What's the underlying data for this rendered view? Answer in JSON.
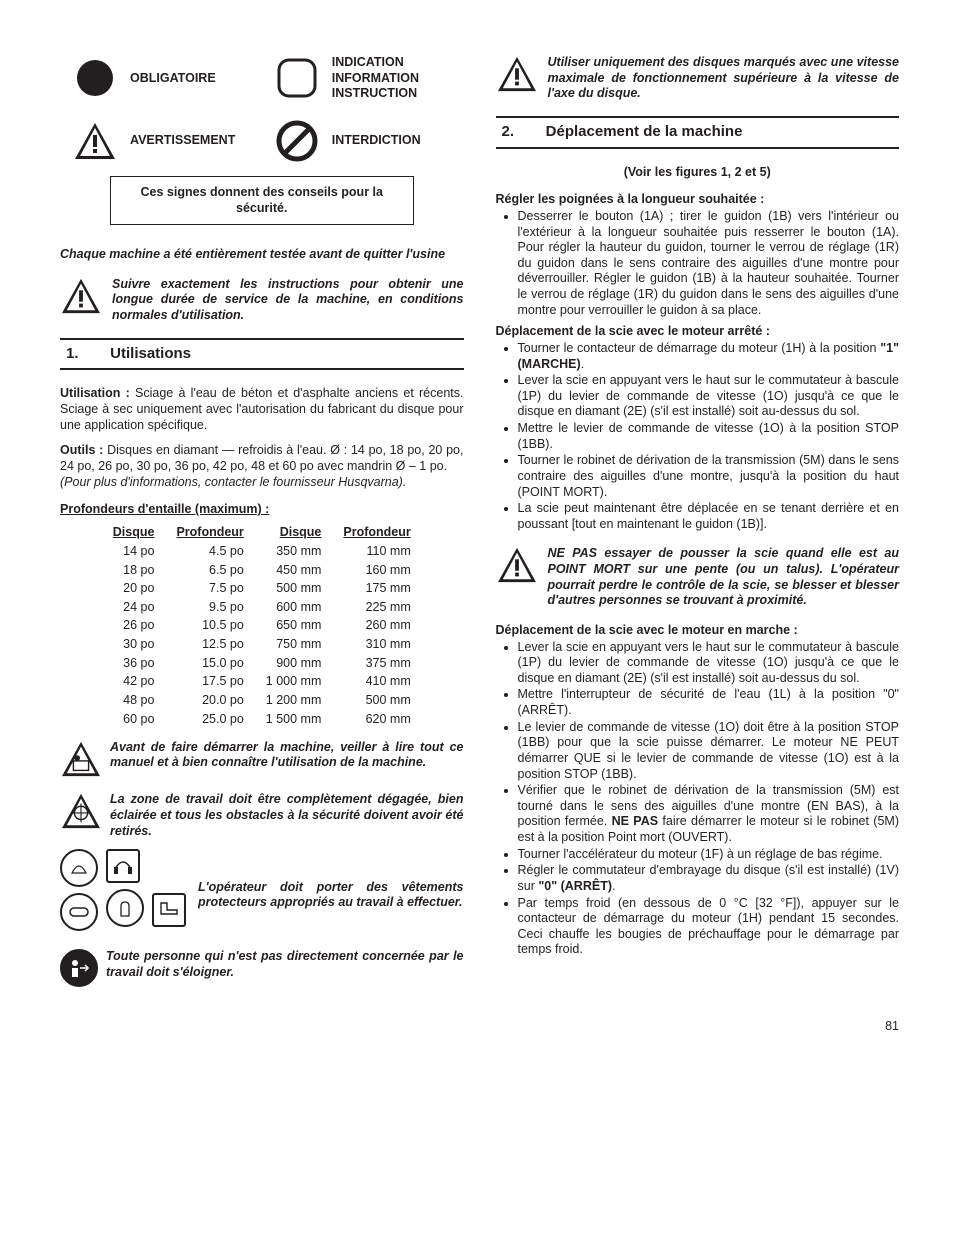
{
  "page_number": "81",
  "colors": {
    "text": "#231f20",
    "bg": "#ffffff"
  },
  "left": {
    "symbols": {
      "c1_label": "OBLIGATOIRE",
      "c2_lines": [
        "INDICATION",
        "INFORMATION",
        "INSTRUCTION"
      ],
      "c3_label": "AVERTISSEMENT",
      "c4_label": "INTERDICTION"
    },
    "safety_box": "Ces signes donnent des conseils pour la sécurité.",
    "tested_note": "Chaque machine a été entièrement testée avant de quitter l'usine",
    "follow_note": "Suivre exactement les instructions pour obtenir une longue durée de service de la machine, en conditions normales d'utilisation.",
    "section1": {
      "num": "1.",
      "title": "Utilisations"
    },
    "utilisation_label": "Utilisation :",
    "utilisation_text": " Sciage à l'eau de béton et d'asphalte anciens et récents. Sciage à sec uniquement avec l'autorisation du fabricant du disque pour une application spécifique.",
    "outils_label": "Outils :",
    "outils_text": " Disques en diamant — refroidis à l'eau. Ø : 14 po, 18 po, 20 po, 24 po, 26 po, 30 po, 36 po, 42 po, 48 et 60 po avec mandrin Ø – 1 po.",
    "outils_note": "(Pour plus d'informations, contacter le fournisseur Husqvarna).",
    "depth_title": "Profondeurs d'entaille (maximum) :",
    "depth_headers": [
      "Disque",
      "Profondeur",
      "Disque",
      "Profondeur"
    ],
    "depth_rows": [
      [
        "14 po",
        "4.5 po",
        "350 mm",
        "110 mm"
      ],
      [
        "18 po",
        "6.5 po",
        "450 mm",
        "160 mm"
      ],
      [
        "20 po",
        "7.5 po",
        "500 mm",
        "175 mm"
      ],
      [
        "24 po",
        "9.5 po",
        "600 mm",
        "225 mm"
      ],
      [
        "26 po",
        "10.5 po",
        "650 mm",
        "260 mm"
      ],
      [
        "30 po",
        "12.5 po",
        "750 mm",
        "310 mm"
      ],
      [
        "36 po",
        "15.0 po",
        "900 mm",
        "375 mm"
      ],
      [
        "42 po",
        "17.5 po",
        "1 000 mm",
        "410 mm"
      ],
      [
        "48 po",
        "20.0 po",
        "1 200 mm",
        "500 mm"
      ],
      [
        "60 po",
        "25.0 po",
        "1 500 mm",
        "620 mm"
      ]
    ],
    "read_manual": "Avant de faire démarrer la machine, veiller à lire tout ce manuel et à bien connaître l'utilisation de la machine.",
    "work_area": "La zone de travail doit être complètement dégagée, bien éclairée et tous les obstacles à la sécurité doivent avoir été retirés.",
    "ppe_text": "L'opérateur doit porter des vêtements protecteurs appropriés au travail à effectuer.",
    "bystander": "Toute personne qui n'est pas directement concernée par le travail doit s'éloigner."
  },
  "right": {
    "disc_warning": "Utiliser uniquement des disques marqués avec une vitesse maximale de fonctionnement supérieure à la vitesse de l'axe du disque.",
    "section2": {
      "num": "2.",
      "title": "Déplacement de la machine"
    },
    "figures_note": "(Voir les figures 1, 2 et 5)",
    "handles_title": "Régler les poignées à la longueur souhaitée :",
    "handles_bullet": "Desserrer le bouton (1A) ; tirer le guidon (1B) vers l'intérieur ou l'extérieur à la longueur souhaitée puis resserrer le bouton (1A).  Pour régler la hauteur du guidon, tourner le verrou de réglage (1R) du guidon dans le sens contraire des aiguilles d'une montre pour déverrouiller. Régler le guidon (1B) à la hauteur souhaitée. Tourner le verrou de réglage (1R) du guidon dans le sens des aiguilles d'une montre pour verrouiller le guidon à sa place.",
    "move_off_title": "Déplacement de la scie avec le moteur arrêté :",
    "move_off_b1a": "Tourner le contacteur de démarrage du moteur (1H) à la position ",
    "move_off_b1b": "\"1\" (MARCHE)",
    "move_off_b1c": ".",
    "move_off_b2": "Lever la scie en appuyant vers le haut sur le commutateur à bascule (1P) du levier de commande de vitesse (1O) jusqu'à ce que le disque en diamant (2E) (s'il est installé) soit au-dessus du sol.",
    "move_off_b3": "Mettre le levier de commande de vitesse (1O) à la position STOP (1BB).",
    "move_off_b4": "Tourner le robinet de dérivation de la transmission (5M) dans le sens contraire des aiguilles d'une montre, jusqu'à la position du haut (POINT MORT).",
    "move_off_b5": "La scie peut maintenant être déplacée en se tenant derrière et en poussant [tout en maintenant le guidon (1B)].",
    "neutral_warning": "NE PAS essayer de pousser la scie quand elle est au POINT MORT sur une pente (ou un talus). L'opérateur pourrait perdre le contrôle de la scie, se blesser et blesser d'autres personnes se trouvant à proximité.",
    "move_on_title": "Déplacement de la scie avec le moteur en marche :",
    "move_on_b1": "Lever la scie en appuyant vers le haut sur le commutateur à bascule (1P) du levier de commande de vitesse (1O) jusqu'à ce que le disque en diamant (2E) (s'il est installé) soit au-dessus du sol.",
    "move_on_b2": "Mettre l'interrupteur de sécurité de l'eau (1L) à la position \"0\" (ARRÊT).",
    "move_on_b3": "Le levier de commande de vitesse (1O) doit être à la position STOP (1BB) pour que la scie puisse démarrer. Le moteur NE PEUT démarrer QUE si le levier de commande de vitesse (1O) est à la position STOP (1BB).",
    "move_on_b4a": "Vérifier que le robinet de dérivation de la transmission (5M) est tourné dans le sens des aiguilles d'une montre (EN BAS), à la position fermée. ",
    "move_on_b4b": "NE PAS",
    "move_on_b4c": " faire démarrer le moteur si le robinet (5M) est à la position Point mort (OUVERT).",
    "move_on_b5": "Tourner l'accélérateur du moteur (1F) à un réglage de bas régime.",
    "move_on_b6a": "Régler le commutateur d'embrayage du disque (s'il est installé) (1V) sur ",
    "move_on_b6b": "\"0\" (ARRÊT)",
    "move_on_b6c": ".",
    "move_on_b7": "Par temps froid (en dessous de 0 °C [32 °F]), appuyer sur le contacteur de démarrage du moteur (1H) pendant 15 secondes. Ceci chauffe les bougies de préchauffage pour le démarrage par temps froid."
  }
}
